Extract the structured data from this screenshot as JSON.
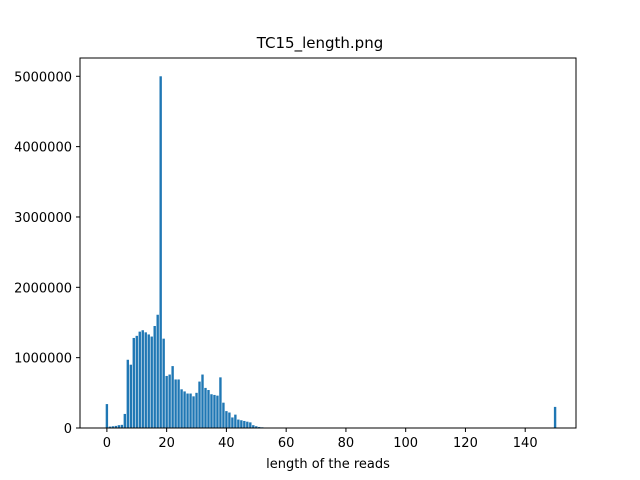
{
  "chart_data": {
    "type": "bar",
    "title": "TC15_length.png",
    "xlabel": "length of the reads",
    "ylabel": "",
    "xlim": [
      -9,
      157
    ],
    "ylim": [
      0,
      5000000
    ],
    "x_ticks": [
      0,
      20,
      40,
      60,
      80,
      100,
      120,
      140
    ],
    "y_ticks": [
      0,
      1000000,
      2000000,
      3000000,
      4000000,
      5000000
    ],
    "grid": false,
    "bar_color": "#1f77b4",
    "x": [
      0,
      1,
      2,
      3,
      4,
      5,
      6,
      7,
      8,
      9,
      10,
      11,
      12,
      13,
      14,
      15,
      16,
      17,
      18,
      19,
      20,
      21,
      22,
      23,
      24,
      25,
      26,
      27,
      28,
      29,
      30,
      31,
      32,
      33,
      34,
      35,
      36,
      37,
      38,
      39,
      40,
      41,
      42,
      43,
      44,
      45,
      46,
      47,
      48,
      49,
      50,
      51,
      52,
      53,
      150
    ],
    "values": [
      340000,
      20000,
      25000,
      30000,
      40000,
      45000,
      200000,
      970000,
      900000,
      1280000,
      1310000,
      1370000,
      1390000,
      1360000,
      1330000,
      1300000,
      1450000,
      1610000,
      5000000,
      1270000,
      740000,
      760000,
      880000,
      690000,
      690000,
      550000,
      520000,
      490000,
      490000,
      450000,
      500000,
      660000,
      760000,
      570000,
      540000,
      480000,
      470000,
      460000,
      720000,
      360000,
      240000,
      220000,
      150000,
      190000,
      120000,
      110000,
      100000,
      90000,
      80000,
      40000,
      25000,
      15000,
      10000,
      5000,
      300000
    ]
  }
}
